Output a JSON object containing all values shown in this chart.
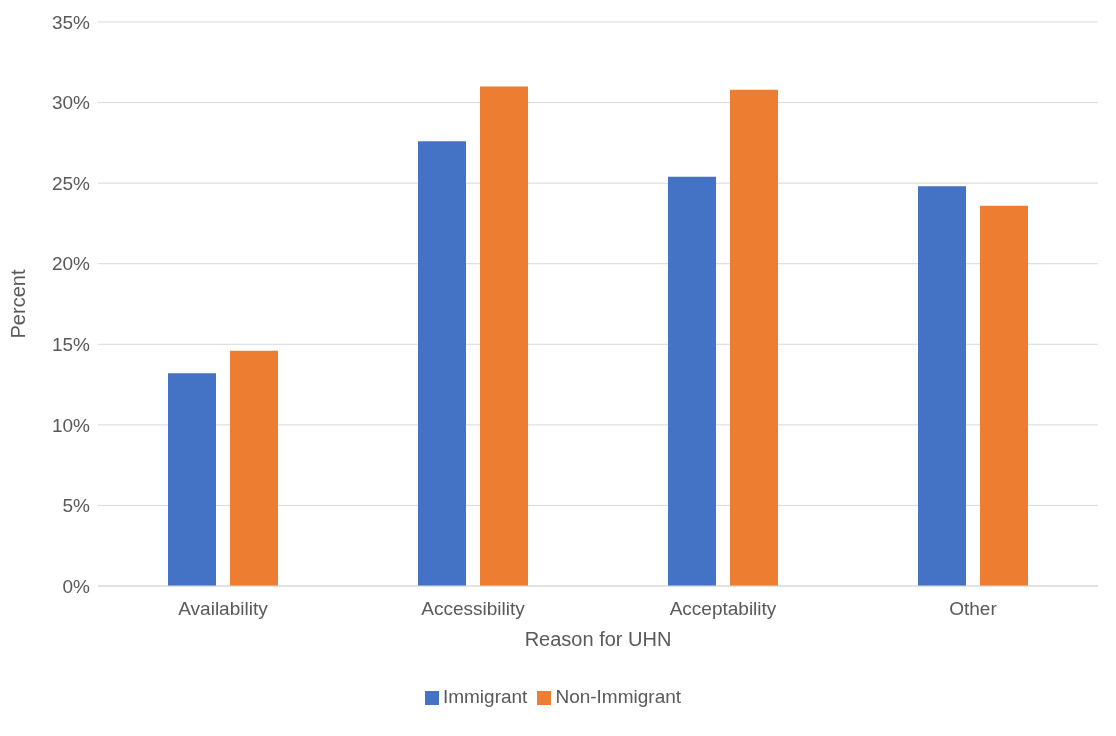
{
  "chart_data": {
    "type": "bar",
    "xlabel": "Reason for UHN",
    "ylabel": "Percent",
    "categories": [
      "Availability",
      "Accessibility",
      "Acceptability",
      "Other"
    ],
    "series": [
      {
        "name": "Immigrant",
        "color": "#4472c4",
        "values": [
          13.2,
          27.6,
          25.4,
          24.8
        ]
      },
      {
        "name": "Non-Immigrant",
        "color": "#ed7d31",
        "values": [
          14.6,
          31.0,
          30.8,
          23.6
        ]
      }
    ],
    "ylim": [
      0,
      35
    ],
    "yticks": [
      {
        "value": 0,
        "label": "0%"
      },
      {
        "value": 5,
        "label": "5%"
      },
      {
        "value": 10,
        "label": "10%"
      },
      {
        "value": 15,
        "label": "15%"
      },
      {
        "value": 20,
        "label": "20%"
      },
      {
        "value": 25,
        "label": "25%"
      },
      {
        "value": 30,
        "label": "30%"
      },
      {
        "value": 35,
        "label": "35%"
      }
    ],
    "grid": "y",
    "legend": "bottom"
  }
}
